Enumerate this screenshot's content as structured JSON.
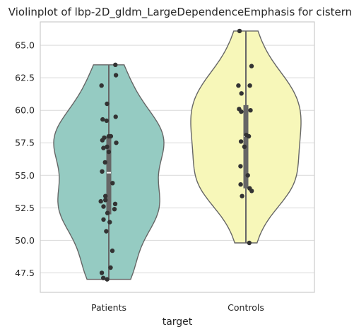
{
  "chart_data": {
    "type": "violin",
    "title": "Violinplot of lbp-2D_gldm_LargeDependenceEmphasis for cistern",
    "xlabel": "target",
    "ylabel": "",
    "categories": [
      "Patients",
      "Controls"
    ],
    "yticks": [
      "47.5",
      "50.0",
      "52.5",
      "55.0",
      "57.5",
      "60.0",
      "62.5",
      "65.0"
    ],
    "ylim": [
      46.0,
      66.8
    ],
    "grid": "horizontal",
    "colors": {
      "Patients": "#95cbc2",
      "Controls": "#f7f7b9",
      "outline": "#666666",
      "points": "#333333",
      "box": "#666666"
    },
    "series": [
      {
        "category": "Patients",
        "min": 47.0,
        "max": 63.5,
        "q1": 52.0,
        "median": 55.2,
        "q3": 58.0,
        "points": [
          63.5,
          62.7,
          61.9,
          60.5,
          59.5,
          59.3,
          59.2,
          58.0,
          58.0,
          57.9,
          57.7,
          57.5,
          57.2,
          57.1,
          56.8,
          56.0,
          55.3,
          54.4,
          53.4,
          53.1,
          53.0,
          52.8,
          52.6,
          52.4,
          52.1,
          51.6,
          51.4,
          50.7,
          49.2,
          47.9,
          47.5,
          47.1,
          47.0
        ]
      },
      {
        "category": "Controls",
        "min": 49.8,
        "max": 66.1,
        "q1": 54.0,
        "median": 58.0,
        "q3": 60.4,
        "points": [
          66.1,
          63.4,
          61.9,
          61.9,
          61.3,
          60.1,
          60.0,
          59.9,
          58.1,
          58.0,
          57.6,
          57.2,
          55.7,
          55.0,
          54.3,
          54.0,
          53.8,
          53.4,
          49.8
        ]
      }
    ]
  }
}
